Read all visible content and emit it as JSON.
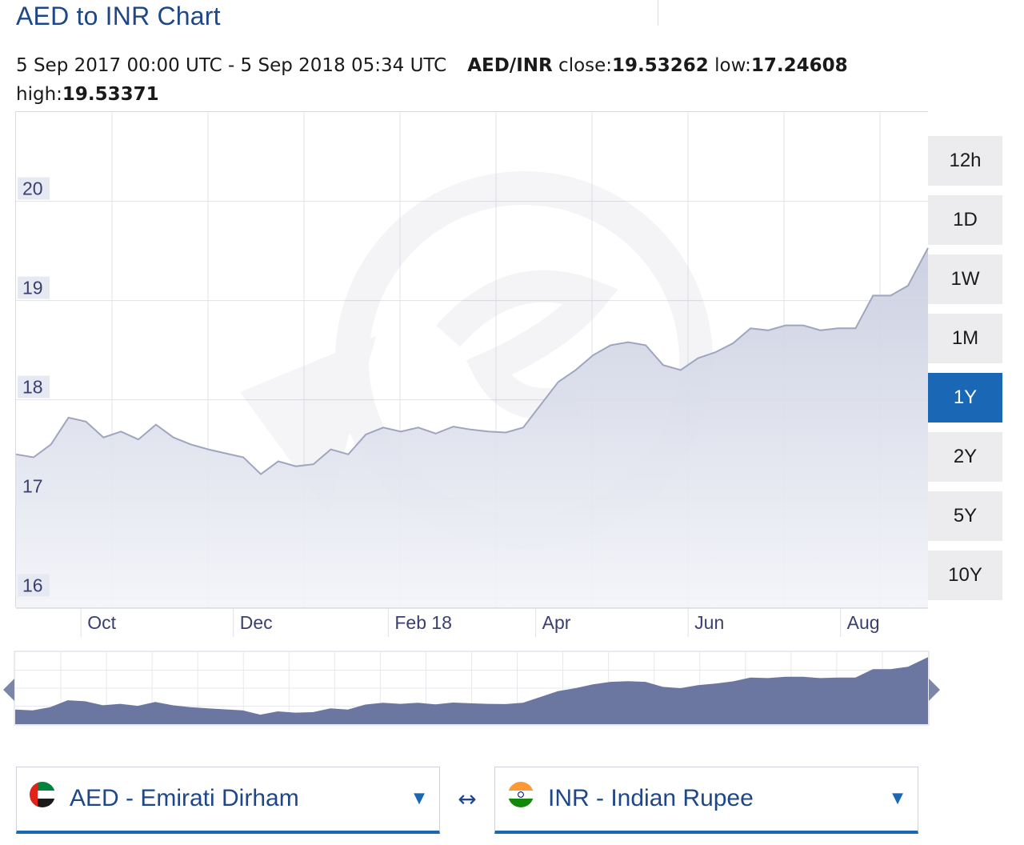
{
  "page": {
    "title": "AED to INR Chart",
    "date_range": "5 Sep 2017 00:00 UTC - 5 Sep 2018 05:34 UTC",
    "pair": "AED/INR",
    "close_label": "close:",
    "close_value": "19.53262",
    "low_label": "low:",
    "low_value": "17.24608",
    "high_label": "high:",
    "high_value": "19.53371"
  },
  "range_buttons": [
    {
      "label": "12h",
      "active": false
    },
    {
      "label": "1D",
      "active": false
    },
    {
      "label": "1W",
      "active": false
    },
    {
      "label": "1M",
      "active": false
    },
    {
      "label": "1Y",
      "active": true
    },
    {
      "label": "2Y",
      "active": false
    },
    {
      "label": "5Y",
      "active": false
    },
    {
      "label": "10Y",
      "active": false
    }
  ],
  "from_currency": {
    "label": "AED - Emirati Dirham",
    "flag": "uae-flag-icon"
  },
  "to_currency": {
    "label": "INR - Indian Rupee",
    "flag": "india-flag-icon"
  },
  "swap_symbol": "↔",
  "dropdown_symbol": "▼",
  "colors": {
    "title": "#1f4788",
    "accent": "#1a67b6",
    "line": "#9fa5bd",
    "area_top": "#d4d8e6",
    "navigator_fill": "#6b77a0",
    "button_bg": "#ececee",
    "tick_label_bg": "#e6e8f2"
  },
  "chart_data": {
    "type": "area",
    "title": "AED to INR Chart",
    "ylim": [
      15.9,
      20.9
    ],
    "y_ticks": [
      16,
      17,
      18,
      19,
      20
    ],
    "x_ticks": [
      {
        "label": "Oct",
        "date": "2017-10-01"
      },
      {
        "label": "Dec",
        "date": "2017-12-01"
      },
      {
        "label": "Feb 18",
        "date": "2018-02-01"
      },
      {
        "label": "Apr",
        "date": "2018-04-01"
      },
      {
        "label": "Jun",
        "date": "2018-06-01"
      },
      {
        "label": "Aug",
        "date": "2018-08-01"
      }
    ],
    "x_range": [
      "2017-09-05",
      "2018-09-05"
    ],
    "grid": true,
    "series": [
      {
        "x": [
          "2017-09-05",
          "2017-09-12",
          "2017-09-19",
          "2017-09-26",
          "2017-10-03",
          "2017-10-10",
          "2017-10-17",
          "2017-10-24",
          "2017-10-31",
          "2017-11-07",
          "2017-11-14",
          "2017-11-21",
          "2017-11-28",
          "2017-12-05",
          "2017-12-12",
          "2017-12-19",
          "2017-12-26",
          "2018-01-02",
          "2018-01-09",
          "2018-01-16",
          "2018-01-23",
          "2018-01-30",
          "2018-02-06",
          "2018-02-13",
          "2018-02-20",
          "2018-02-27",
          "2018-03-06",
          "2018-03-13",
          "2018-03-20",
          "2018-03-27",
          "2018-04-03",
          "2018-04-10",
          "2018-04-17",
          "2018-04-24",
          "2018-05-01",
          "2018-05-08",
          "2018-05-15",
          "2018-05-22",
          "2018-05-29",
          "2018-06-05",
          "2018-06-12",
          "2018-06-19",
          "2018-06-26",
          "2018-07-03",
          "2018-07-10",
          "2018-07-17",
          "2018-07-24",
          "2018-07-31",
          "2018-08-07",
          "2018-08-14",
          "2018-08-21",
          "2018-08-28",
          "2018-09-05"
        ],
        "y": [
          17.45,
          17.42,
          17.55,
          17.82,
          17.78,
          17.62,
          17.68,
          17.6,
          17.75,
          17.62,
          17.55,
          17.5,
          17.46,
          17.42,
          17.25,
          17.38,
          17.33,
          17.35,
          17.5,
          17.45,
          17.65,
          17.72,
          17.68,
          17.72,
          17.66,
          17.73,
          17.7,
          17.68,
          17.67,
          17.72,
          17.95,
          18.18,
          18.3,
          18.45,
          18.55,
          18.58,
          18.55,
          18.35,
          18.3,
          18.42,
          18.48,
          18.57,
          18.72,
          18.7,
          18.75,
          18.75,
          18.7,
          18.72,
          18.72,
          19.05,
          19.05,
          19.15,
          19.53
        ]
      }
    ]
  }
}
